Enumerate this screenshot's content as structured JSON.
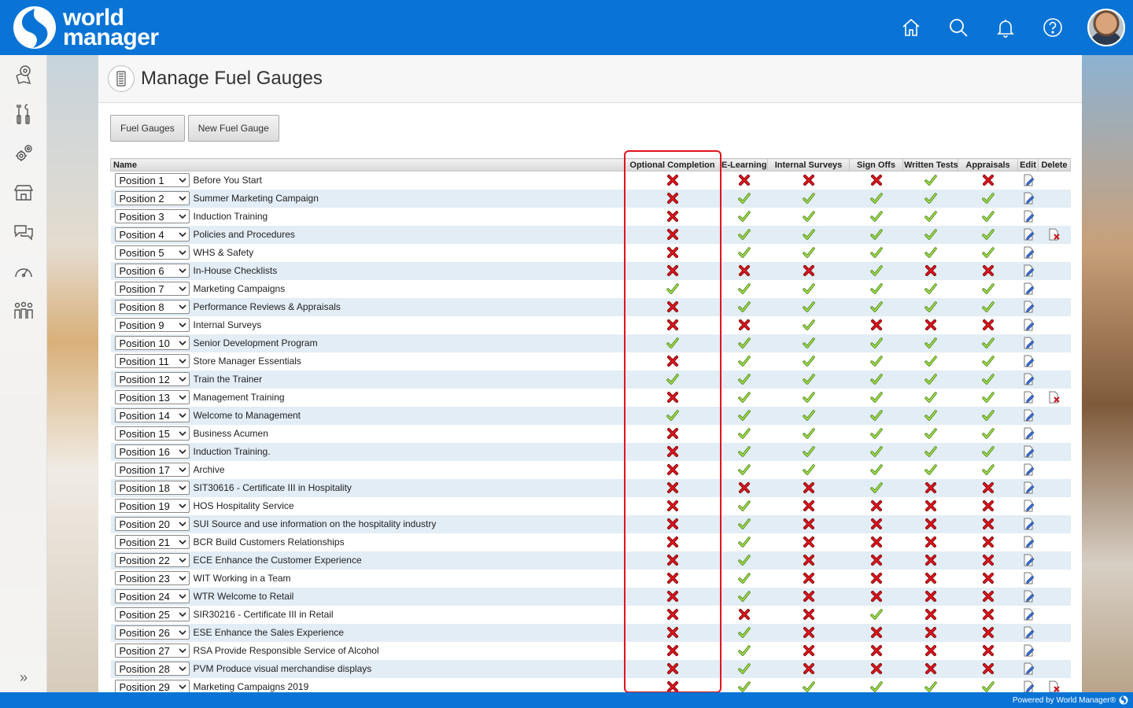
{
  "app": {
    "logo_line1": "world",
    "logo_line2": "manager",
    "brand_color": "#0a74d6"
  },
  "topbar": {
    "icons": [
      "home-icon",
      "search-icon",
      "bell-icon",
      "help-icon",
      "avatar"
    ]
  },
  "sidebar": {
    "icons": [
      "map-pin-icon",
      "tools-icon",
      "settings-gears-icon",
      "store-icon",
      "chat-icon",
      "gauge-icon",
      "people-icon"
    ],
    "expand_label": "»"
  },
  "page": {
    "title": "Manage Fuel Gauges",
    "buttons": [
      "Fuel Gauges",
      "New Fuel Gauge"
    ]
  },
  "table": {
    "columns": [
      "Name",
      "Optional Completion",
      "E-Learning",
      "Internal Surveys",
      "Sign Offs",
      "Written Tests",
      "Appraisals",
      "Edit",
      "Delete"
    ],
    "highlighted_column": "Optional Completion",
    "highlight_color": "#e0141e",
    "rows": [
      {
        "position": "Position 1",
        "name": "Before You Start",
        "optional": 0,
        "elearning": 0,
        "surveys": 0,
        "signoffs": 0,
        "tests": 1,
        "appraisals": 0,
        "delete": false
      },
      {
        "position": "Position 2",
        "name": "Summer Marketing Campaign",
        "optional": 0,
        "elearning": 1,
        "surveys": 1,
        "signoffs": 1,
        "tests": 1,
        "appraisals": 1,
        "delete": false
      },
      {
        "position": "Position 3",
        "name": "Induction Training",
        "optional": 0,
        "elearning": 1,
        "surveys": 1,
        "signoffs": 1,
        "tests": 1,
        "appraisals": 1,
        "delete": false
      },
      {
        "position": "Position 4",
        "name": "Policies and Procedures",
        "optional": 0,
        "elearning": 1,
        "surveys": 1,
        "signoffs": 1,
        "tests": 1,
        "appraisals": 1,
        "delete": true
      },
      {
        "position": "Position 5",
        "name": "WHS & Safety",
        "optional": 0,
        "elearning": 1,
        "surveys": 1,
        "signoffs": 1,
        "tests": 1,
        "appraisals": 1,
        "delete": false
      },
      {
        "position": "Position 6",
        "name": "In-House Checklists",
        "optional": 0,
        "elearning": 0,
        "surveys": 0,
        "signoffs": 1,
        "tests": 0,
        "appraisals": 0,
        "delete": false
      },
      {
        "position": "Position 7",
        "name": "Marketing Campaigns",
        "optional": 1,
        "elearning": 1,
        "surveys": 1,
        "signoffs": 1,
        "tests": 1,
        "appraisals": 1,
        "delete": false
      },
      {
        "position": "Position 8",
        "name": "Performance Reviews & Appraisals",
        "optional": 0,
        "elearning": 1,
        "surveys": 1,
        "signoffs": 1,
        "tests": 1,
        "appraisals": 1,
        "delete": false
      },
      {
        "position": "Position 9",
        "name": "Internal Surveys",
        "optional": 0,
        "elearning": 0,
        "surveys": 1,
        "signoffs": 0,
        "tests": 0,
        "appraisals": 0,
        "delete": false
      },
      {
        "position": "Position 10",
        "name": "Senior Development Program",
        "optional": 1,
        "elearning": 1,
        "surveys": 1,
        "signoffs": 1,
        "tests": 1,
        "appraisals": 1,
        "delete": false
      },
      {
        "position": "Position 11",
        "name": "Store Manager Essentials",
        "optional": 0,
        "elearning": 1,
        "surveys": 1,
        "signoffs": 1,
        "tests": 1,
        "appraisals": 1,
        "delete": false
      },
      {
        "position": "Position 12",
        "name": "Train the Trainer",
        "optional": 1,
        "elearning": 1,
        "surveys": 1,
        "signoffs": 1,
        "tests": 1,
        "appraisals": 1,
        "delete": false
      },
      {
        "position": "Position 13",
        "name": "Management Training",
        "optional": 0,
        "elearning": 1,
        "surveys": 1,
        "signoffs": 1,
        "tests": 1,
        "appraisals": 1,
        "delete": true
      },
      {
        "position": "Position 14",
        "name": "Welcome to Management",
        "optional": 1,
        "elearning": 1,
        "surveys": 1,
        "signoffs": 1,
        "tests": 1,
        "appraisals": 1,
        "delete": false
      },
      {
        "position": "Position 15",
        "name": "Business Acumen",
        "optional": 0,
        "elearning": 1,
        "surveys": 1,
        "signoffs": 1,
        "tests": 1,
        "appraisals": 1,
        "delete": false
      },
      {
        "position": "Position 16",
        "name": "Induction Training.",
        "optional": 0,
        "elearning": 1,
        "surveys": 1,
        "signoffs": 1,
        "tests": 1,
        "appraisals": 1,
        "delete": false
      },
      {
        "position": "Position 17",
        "name": "Archive",
        "optional": 0,
        "elearning": 1,
        "surveys": 1,
        "signoffs": 1,
        "tests": 1,
        "appraisals": 1,
        "delete": false
      },
      {
        "position": "Position 18",
        "name": "SIT30616 - Certificate III in Hospitality",
        "optional": 0,
        "elearning": 0,
        "surveys": 0,
        "signoffs": 1,
        "tests": 0,
        "appraisals": 0,
        "delete": false
      },
      {
        "position": "Position 19",
        "name": "HOS Hospitality Service",
        "optional": 0,
        "elearning": 1,
        "surveys": 0,
        "signoffs": 0,
        "tests": 0,
        "appraisals": 0,
        "delete": false
      },
      {
        "position": "Position 20",
        "name": "SUI Source and use information on the hospitality industry",
        "optional": 0,
        "elearning": 1,
        "surveys": 0,
        "signoffs": 0,
        "tests": 0,
        "appraisals": 0,
        "delete": false
      },
      {
        "position": "Position 21",
        "name": "BCR Build Customers Relationships",
        "optional": 0,
        "elearning": 1,
        "surveys": 0,
        "signoffs": 0,
        "tests": 0,
        "appraisals": 0,
        "delete": false
      },
      {
        "position": "Position 22",
        "name": "ECE Enhance the Customer Experience",
        "optional": 0,
        "elearning": 1,
        "surveys": 0,
        "signoffs": 0,
        "tests": 0,
        "appraisals": 0,
        "delete": false
      },
      {
        "position": "Position 23",
        "name": "WIT Working in a Team",
        "optional": 0,
        "elearning": 1,
        "surveys": 0,
        "signoffs": 0,
        "tests": 0,
        "appraisals": 0,
        "delete": false
      },
      {
        "position": "Position 24",
        "name": "WTR Welcome to Retail",
        "optional": 0,
        "elearning": 1,
        "surveys": 0,
        "signoffs": 0,
        "tests": 0,
        "appraisals": 0,
        "delete": false
      },
      {
        "position": "Position 25",
        "name": "SIR30216 - Certificate III in Retail",
        "optional": 0,
        "elearning": 0,
        "surveys": 0,
        "signoffs": 1,
        "tests": 0,
        "appraisals": 0,
        "delete": false
      },
      {
        "position": "Position 26",
        "name": "ESE Enhance the Sales Experience",
        "optional": 0,
        "elearning": 1,
        "surveys": 0,
        "signoffs": 0,
        "tests": 0,
        "appraisals": 0,
        "delete": false
      },
      {
        "position": "Position 27",
        "name": "RSA Provide Responsible Service of Alcohol",
        "optional": 0,
        "elearning": 1,
        "surveys": 0,
        "signoffs": 0,
        "tests": 0,
        "appraisals": 0,
        "delete": false
      },
      {
        "position": "Position 28",
        "name": "PVM Produce visual merchandise displays",
        "optional": 0,
        "elearning": 1,
        "surveys": 0,
        "signoffs": 0,
        "tests": 0,
        "appraisals": 0,
        "delete": false
      },
      {
        "position": "Position 29",
        "name": "Marketing Campaigns 2019",
        "optional": 0,
        "elearning": 1,
        "surveys": 1,
        "signoffs": 1,
        "tests": 1,
        "appraisals": 1,
        "delete": true
      }
    ]
  },
  "footer": {
    "text": "Powered by World Manager®"
  }
}
